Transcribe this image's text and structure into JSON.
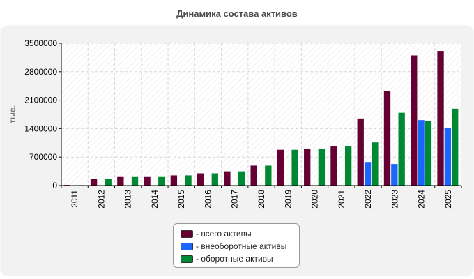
{
  "chart_data": {
    "type": "bar",
    "title": "Динамика состава активов",
    "ylabel": "тыс.",
    "xlabel": "",
    "ylim": [
      0,
      3500000
    ],
    "yticks": [
      0,
      700000,
      1400000,
      2100000,
      2800000,
      3500000
    ],
    "ytick_labels": [
      "0",
      "700000",
      "1400000",
      "2100000",
      "2800000",
      "3500000"
    ],
    "categories": [
      "2011",
      "2012",
      "2013",
      "2014",
      "2015",
      "2016",
      "2017",
      "2018",
      "2019",
      "2020",
      "2021",
      "2022",
      "2023",
      "2024",
      "2025"
    ],
    "series": [
      {
        "name": "- всего активы",
        "color": "#660033",
        "values": [
          15000,
          160000,
          210000,
          210000,
          250000,
          300000,
          350000,
          490000,
          880000,
          910000,
          960000,
          1650000,
          2330000,
          3200000,
          3310000
        ]
      },
      {
        "name": "- внеоборотные активы",
        "color": "#1a66ff",
        "values": [
          8000,
          5000,
          5000,
          5000,
          5000,
          5000,
          5000,
          5000,
          5000,
          5000,
          5000,
          580000,
          530000,
          1610000,
          1420000
        ]
      },
      {
        "name": "- оборотные активы",
        "color": "#008833",
        "values": [
          10000,
          160000,
          210000,
          210000,
          250000,
          300000,
          350000,
          490000,
          880000,
          910000,
          960000,
          1060000,
          1790000,
          1580000,
          1890000
        ]
      }
    ],
    "grid": true,
    "legend_position": "bottom-center"
  }
}
